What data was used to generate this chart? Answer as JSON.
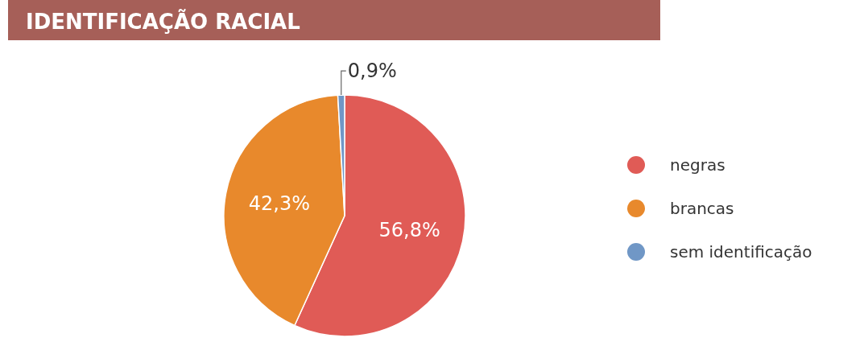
{
  "chart_data": {
    "type": "pie",
    "title": "IDENTIFICAÇÃO RACIAL",
    "categories": [
      "negras",
      "brancas",
      "sem identificação"
    ],
    "values": [
      56.8,
      42.3,
      0.9
    ],
    "value_labels": [
      "56,8%",
      "42,3%",
      "0,9%"
    ],
    "colors": [
      "#e05b56",
      "#e8892c",
      "#7097c6"
    ],
    "legend": "right"
  }
}
